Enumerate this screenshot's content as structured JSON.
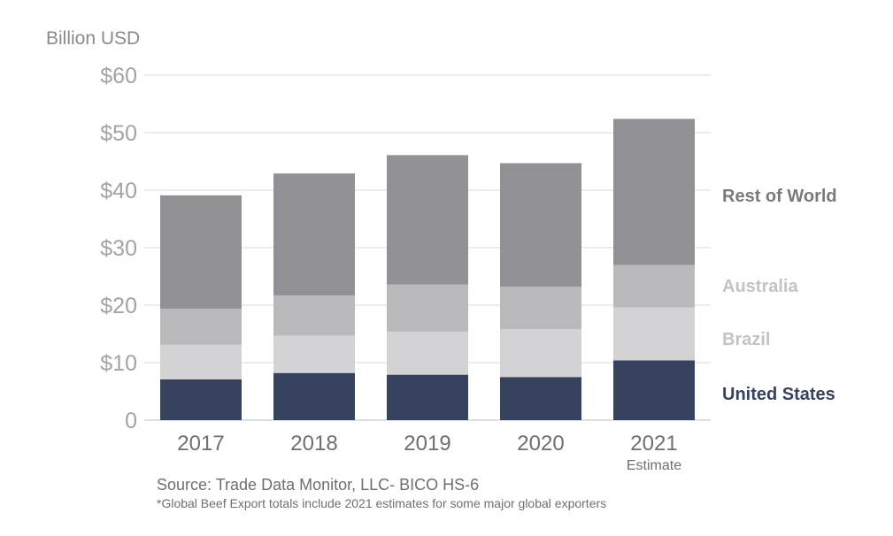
{
  "chart_data": {
    "type": "bar",
    "stacked": true,
    "ylabel": "Billion USD",
    "categories": [
      "2017",
      "2018",
      "2019",
      "2020",
      "2021"
    ],
    "category_notes": [
      "",
      "",
      "",
      "",
      "Estimate"
    ],
    "ylim": [
      0,
      60
    ],
    "yticks": [
      0,
      10,
      20,
      30,
      40,
      50,
      60
    ],
    "ytick_labels": [
      "0",
      "$10",
      "$20",
      "$30",
      "$40",
      "$50",
      "$60"
    ],
    "grid": true,
    "series": [
      {
        "name": "United States",
        "color": "#37435e",
        "values": [
          7.1,
          8.2,
          7.9,
          7.5,
          10.4
        ]
      },
      {
        "name": "Brazil",
        "color": "#d3d3d6",
        "values": [
          6.0,
          6.5,
          7.5,
          8.3,
          9.2
        ]
      },
      {
        "name": "Australia",
        "color": "#b9b9bc",
        "values": [
          6.3,
          7.0,
          8.2,
          7.4,
          7.4
        ]
      },
      {
        "name": "Rest of World",
        "color": "#919195",
        "values": [
          19.7,
          21.2,
          22.5,
          21.5,
          25.4
        ]
      }
    ],
    "legend": [
      {
        "label": "Rest of World",
        "color": "#7a7a7d"
      },
      {
        "label": "Australia",
        "color": "#c3c3c6"
      },
      {
        "label": "Brazil",
        "color": "#c3c3c6"
      },
      {
        "label": "United States",
        "color": "#37435e"
      }
    ],
    "source": "Source: Trade Data Monitor, LLC- BICO HS-6",
    "note": "*Global Beef Export totals include 2021 estimates for some major global exporters"
  }
}
